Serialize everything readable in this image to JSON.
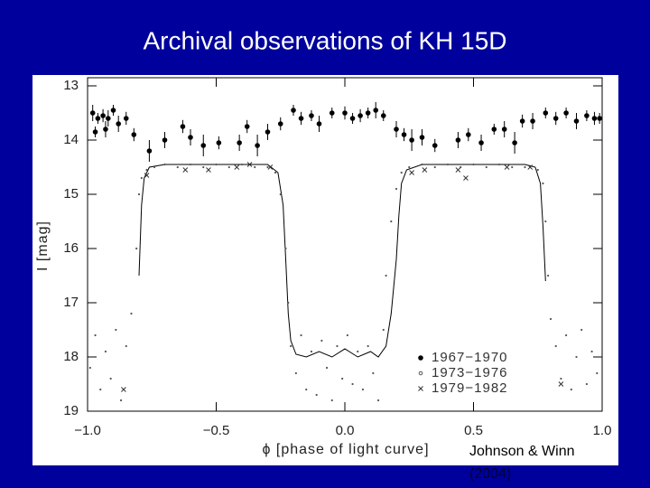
{
  "title": "Archival observations of KH 15D",
  "citation": [
    "Johnson & Winn",
    "(2004)"
  ],
  "chart_data": {
    "type": "scatter",
    "x_label": "ϕ [phase of light curve]",
    "y_label": "I [mag]",
    "xlim": [
      -1,
      1
    ],
    "ylim": [
      19,
      12.85
    ],
    "xticks": [
      {
        "value": -1,
        "label": "−1.0"
      },
      {
        "value": -0.5,
        "label": "−0.5"
      },
      {
        "value": 0,
        "label": "0.0"
      },
      0.5,
      {
        "value": 1,
        "label": "1.0"
      }
    ],
    "yticks": [
      13,
      14,
      15,
      16,
      17,
      18,
      19
    ],
    "legend": "lower right",
    "series": [
      {
        "name": "1967−1970",
        "color": "#000000",
        "marker": "circle",
        "x": [
          -0.98,
          -0.96,
          -0.94,
          -0.92,
          -0.9,
          -0.88,
          -0.85,
          -0.97,
          -0.93,
          -0.82,
          -0.76,
          -0.7,
          -0.63,
          -0.6,
          -0.55,
          -0.49,
          -0.41,
          -0.38,
          -0.34,
          -0.3,
          -0.25,
          -0.2,
          -0.17,
          -0.13,
          -0.1,
          -0.05,
          0.0,
          0.03,
          0.06,
          0.09,
          0.12,
          0.15,
          0.2,
          0.23,
          0.26,
          0.3,
          0.35,
          0.44,
          0.48,
          0.53,
          0.58,
          0.62,
          0.66,
          0.69,
          0.73,
          0.78,
          0.82,
          0.86,
          0.9,
          0.94,
          0.97,
          0.99
        ],
        "values": [
          13.5,
          13.6,
          13.55,
          13.6,
          13.45,
          13.7,
          13.6,
          13.85,
          13.8,
          13.9,
          14.2,
          14.0,
          13.75,
          13.95,
          14.1,
          14.05,
          14.05,
          13.75,
          14.1,
          13.85,
          13.7,
          13.45,
          13.6,
          13.55,
          13.7,
          13.5,
          13.5,
          13.6,
          13.55,
          13.5,
          13.45,
          13.55,
          13.8,
          13.9,
          14.0,
          13.95,
          14.1,
          14.0,
          13.9,
          14.05,
          13.8,
          13.8,
          14.05,
          13.65,
          13.65,
          13.5,
          13.6,
          13.5,
          13.65,
          13.55,
          13.6,
          13.6
        ],
        "errors": [
          0.15,
          0.1,
          0.12,
          0.15,
          0.1,
          0.15,
          0.12,
          0.1,
          0.15,
          0.12,
          0.2,
          0.15,
          0.12,
          0.15,
          0.2,
          0.12,
          0.15,
          0.12,
          0.2,
          0.15,
          0.12,
          0.1,
          0.12,
          0.1,
          0.15,
          0.1,
          0.12,
          0.1,
          0.12,
          0.1,
          0.15,
          0.1,
          0.15,
          0.12,
          0.2,
          0.15,
          0.12,
          0.15,
          0.12,
          0.15,
          0.1,
          0.15,
          0.2,
          0.12,
          0.15,
          0.1,
          0.12,
          0.1,
          0.15,
          0.1,
          0.12,
          0.1
        ]
      },
      {
        "name": "1973−1976",
        "color": "#555555",
        "marker": "dot",
        "x": [
          -0.99,
          -0.97,
          -0.95,
          -0.93,
          -0.91,
          -0.89,
          -0.87,
          -0.85,
          -0.83,
          -0.81,
          -0.8,
          -0.79,
          -0.77,
          -0.74,
          -0.7,
          -0.65,
          -0.6,
          -0.55,
          -0.5,
          -0.45,
          -0.4,
          -0.35,
          -0.3,
          -0.27,
          -0.25,
          -0.23,
          -0.22,
          -0.21,
          -0.19,
          -0.17,
          -0.15,
          -0.13,
          -0.11,
          -0.09,
          -0.07,
          -0.05,
          -0.03,
          -0.01,
          0.01,
          0.03,
          0.05,
          0.07,
          0.09,
          0.11,
          0.13,
          0.15,
          0.16,
          0.18,
          0.2,
          0.22,
          0.25,
          0.3,
          0.35,
          0.4,
          0.45,
          0.5,
          0.55,
          0.6,
          0.65,
          0.7,
          0.75,
          0.77,
          0.78,
          0.79,
          0.8,
          0.82,
          0.84,
          0.86,
          0.88,
          0.9,
          0.92,
          0.94,
          0.96,
          0.98
        ],
        "values": [
          18.2,
          17.6,
          18.6,
          17.9,
          18.4,
          17.5,
          18.8,
          17.8,
          17.2,
          16.0,
          15.0,
          14.7,
          14.55,
          14.5,
          14.45,
          14.5,
          14.45,
          14.5,
          14.45,
          14.5,
          14.45,
          14.5,
          14.5,
          14.6,
          15.0,
          16.0,
          17.0,
          17.8,
          18.3,
          17.6,
          18.6,
          17.9,
          18.7,
          17.7,
          18.2,
          18.8,
          17.8,
          18.4,
          17.6,
          18.5,
          17.9,
          18.6,
          17.8,
          18.3,
          18.8,
          17.5,
          16.5,
          15.5,
          14.9,
          14.6,
          14.5,
          14.45,
          14.5,
          14.45,
          14.5,
          14.45,
          14.5,
          14.45,
          14.5,
          14.5,
          14.55,
          14.8,
          15.5,
          16.5,
          17.3,
          17.8,
          18.4,
          17.6,
          18.6,
          18.0,
          17.5,
          18.5,
          17.9,
          18.3
        ]
      },
      {
        "name": "1979−1982",
        "color": "#333333",
        "marker": "cross",
        "x": [
          -0.77,
          -0.62,
          -0.53,
          -0.42,
          -0.37,
          -0.29,
          0.26,
          0.31,
          0.44,
          0.47,
          0.63,
          0.72,
          -0.86,
          0.84
        ],
        "values": [
          14.65,
          14.55,
          14.55,
          14.5,
          14.45,
          14.5,
          14.6,
          14.55,
          14.55,
          14.7,
          14.5,
          14.5,
          18.6,
          18.5
        ]
      }
    ],
    "model_curve": {
      "color": "#000000",
      "x": [
        -0.8,
        -0.79,
        -0.78,
        -0.76,
        -0.7,
        -0.5,
        -0.3,
        -0.26,
        -0.24,
        -0.23,
        -0.22,
        -0.21,
        -0.19,
        -0.15,
        -0.1,
        -0.05,
        0,
        0.05,
        0.1,
        0.13,
        0.16,
        0.18,
        0.2,
        0.21,
        0.22,
        0.24,
        0.3,
        0.5,
        0.7,
        0.74,
        0.76,
        0.77,
        0.78
      ],
      "values": [
        16.5,
        15.2,
        14.7,
        14.5,
        14.45,
        14.45,
        14.45,
        14.6,
        15.2,
        16.2,
        17.2,
        17.7,
        17.95,
        18.0,
        17.9,
        18.0,
        17.85,
        18.0,
        17.9,
        18.0,
        17.8,
        17.2,
        16.2,
        15.4,
        14.8,
        14.55,
        14.45,
        14.45,
        14.45,
        14.5,
        14.8,
        15.6,
        16.6
      ]
    }
  }
}
